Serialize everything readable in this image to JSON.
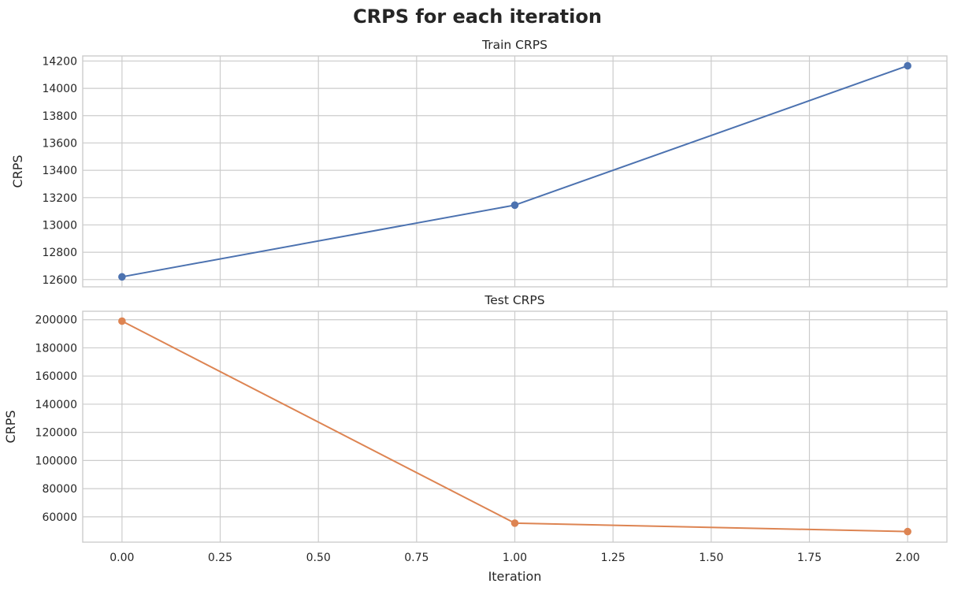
{
  "figure": {
    "suptitle": "CRPS for each iteration"
  },
  "chart_data": [
    {
      "type": "line",
      "title": "Train CRPS",
      "xlabel": "",
      "ylabel": "CRPS",
      "x_ticks": [
        "0.00",
        "0.25",
        "0.50",
        "0.75",
        "1.00",
        "1.25",
        "1.50",
        "1.75",
        "2.00"
      ],
      "y_ticks": [
        "12600",
        "12800",
        "13000",
        "13200",
        "13400",
        "13600",
        "13800",
        "14000",
        "14200"
      ],
      "xlim": [
        -0.1,
        2.1
      ],
      "ylim": [
        12547,
        14237
      ],
      "grid": true,
      "series": [
        {
          "x": [
            0,
            1,
            2
          ],
          "values": [
            12620,
            13145,
            14165
          ],
          "color": "#4c72b0",
          "marker": "circle"
        }
      ]
    },
    {
      "type": "line",
      "title": "Test CRPS",
      "xlabel": "Iteration",
      "ylabel": "CRPS",
      "x_ticks": [
        "0.00",
        "0.25",
        "0.50",
        "0.75",
        "1.00",
        "1.25",
        "1.50",
        "1.75",
        "2.00"
      ],
      "y_ticks": [
        "60000",
        "80000",
        "100000",
        "120000",
        "140000",
        "160000",
        "180000",
        "200000"
      ],
      "xlim": [
        -0.1,
        2.1
      ],
      "ylim": [
        42000,
        206000
      ],
      "grid": true,
      "series": [
        {
          "x": [
            0,
            1,
            2
          ],
          "values": [
            199000,
            55500,
            49500
          ],
          "color": "#dd8452",
          "marker": "circle"
        }
      ]
    }
  ]
}
